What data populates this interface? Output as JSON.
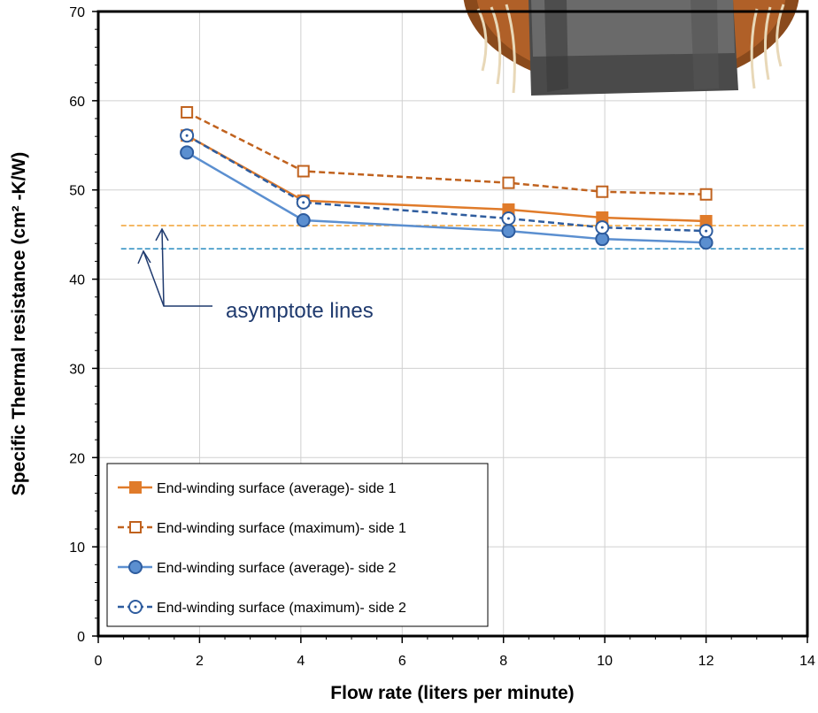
{
  "chart_data": {
    "type": "line",
    "title": "",
    "xlabel": "Flow rate (liters per minute)",
    "ylabel": "Specific Thermal resistance (cm² -K/W)",
    "xlim": [
      0,
      14
    ],
    "ylim": [
      0,
      70
    ],
    "xticks": [
      0,
      2,
      4,
      6,
      8,
      10,
      12,
      14
    ],
    "yticks": [
      0,
      10,
      20,
      30,
      40,
      50,
      60,
      70
    ],
    "grid": true,
    "legend_position": "bottom-left",
    "series": [
      {
        "name": "End-winding surface (average)- side 1",
        "color": "#e07b2a",
        "dash": false,
        "marker": "square-filled",
        "x": [
          1.75,
          4.05,
          8.1,
          9.95,
          12.0
        ],
        "y": [
          56.1,
          48.8,
          47.8,
          46.9,
          46.5
        ]
      },
      {
        "name": "End-winding surface (maximum)- side 1",
        "color": "#c0621e",
        "dash": true,
        "marker": "square-open",
        "x": [
          1.75,
          4.05,
          8.1,
          9.95,
          12.0
        ],
        "y": [
          58.7,
          52.1,
          50.8,
          49.8,
          49.5
        ]
      },
      {
        "name": "End-winding surface (average)- side 2",
        "color": "#5b8fd0",
        "dash": false,
        "marker": "circle-filled",
        "x": [
          1.75,
          4.05,
          8.1,
          9.95,
          12.0
        ],
        "y": [
          54.2,
          46.6,
          45.4,
          44.5,
          44.1
        ]
      },
      {
        "name": "End-winding surface (maximum)- side 2",
        "color": "#2e5c9e",
        "dash": true,
        "marker": "circle-open",
        "x": [
          1.75,
          4.05,
          8.1,
          9.95,
          12.0
        ],
        "y": [
          56.1,
          48.6,
          46.8,
          45.8,
          45.4
        ]
      }
    ],
    "asymptotes": [
      {
        "y": 46.0,
        "color": "#f0a030"
      },
      {
        "y": 43.4,
        "color": "#2a8cc0"
      }
    ],
    "annotation": "asymptote lines"
  }
}
